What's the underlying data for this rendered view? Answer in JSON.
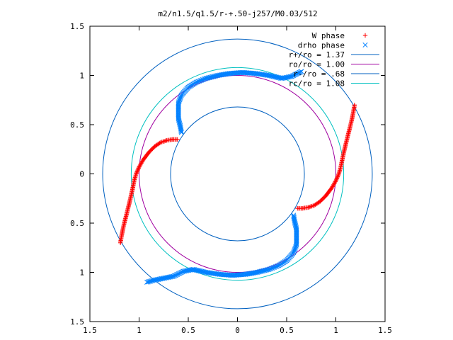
{
  "chart_data": {
    "type": "scatter",
    "title": "m2/n1.5/q1.5/r-+.50-j257/M0.03/512",
    "xlabel": "",
    "ylabel": "",
    "xlim": [
      -1.5,
      1.5
    ],
    "ylim": [
      -1.5,
      1.5
    ],
    "x_ticks": [
      -1.5,
      -1,
      -0.5,
      0,
      0.5,
      1,
      1.5
    ],
    "y_ticks": [
      -1.5,
      -1,
      -0.5,
      0,
      0.5,
      1,
      1.5
    ],
    "x_tick_labels": [
      "1.5",
      "1",
      "0.5",
      "0",
      "0.5",
      "1",
      "1.5"
    ],
    "y_tick_labels": [
      "1.5",
      "1",
      "0.5",
      "0",
      "0.5",
      "1",
      "1.5"
    ],
    "grid": false,
    "legend_position": "top-right",
    "legend": [
      {
        "label": "W phase",
        "marker": "plus",
        "color": "#ff0000"
      },
      {
        "label": "drho phase",
        "marker": "cross",
        "color": "#0080ff"
      },
      {
        "label": "r+/ro = 1.37",
        "line": true,
        "color": "#0060c0"
      },
      {
        "label": "ro/ro = 1.00",
        "line": true,
        "color": "#a000a0"
      },
      {
        "label": "r-/ro = .68",
        "line": true,
        "color": "#0060c0"
      },
      {
        "label": "rc/ro = 1.08",
        "line": true,
        "color": "#00c0c0"
      }
    ],
    "circles": [
      {
        "name": "r+/ro",
        "r": 1.37,
        "color": "#0060c0"
      },
      {
        "name": "ro/ro",
        "r": 1.0,
        "color": "#a000a0"
      },
      {
        "name": "r-/ro",
        "r": 0.68,
        "color": "#0060c0"
      },
      {
        "name": "rc/ro",
        "r": 1.08,
        "color": "#00c0c0"
      }
    ],
    "series": [
      {
        "name": "W phase",
        "marker": "plus",
        "color": "#ff0000",
        "arms": [
          [
            [
              -0.61,
              0.35
            ],
            [
              -0.66,
              0.35
            ],
            [
              -0.72,
              0.34
            ],
            [
              -0.78,
              0.32
            ],
            [
              -0.84,
              0.28
            ],
            [
              -0.9,
              0.22
            ],
            [
              -0.96,
              0.14
            ],
            [
              -1.0,
              0.07
            ],
            [
              -1.03,
              0.0
            ],
            [
              -1.05,
              -0.07
            ],
            [
              -1.07,
              -0.17
            ],
            [
              -1.1,
              -0.3
            ],
            [
              -1.13,
              -0.42
            ],
            [
              -1.16,
              -0.54
            ],
            [
              -1.18,
              -0.64
            ],
            [
              -1.19,
              -0.7
            ]
          ],
          [
            [
              0.61,
              -0.35
            ],
            [
              0.66,
              -0.35
            ],
            [
              0.72,
              -0.34
            ],
            [
              0.78,
              -0.32
            ],
            [
              0.84,
              -0.28
            ],
            [
              0.9,
              -0.22
            ],
            [
              0.96,
              -0.14
            ],
            [
              1.0,
              -0.07
            ],
            [
              1.03,
              0.0
            ],
            [
              1.05,
              0.07
            ],
            [
              1.07,
              0.17
            ],
            [
              1.1,
              0.3
            ],
            [
              1.13,
              0.42
            ],
            [
              1.16,
              0.54
            ],
            [
              1.18,
              0.64
            ],
            [
              1.19,
              0.7
            ]
          ]
        ]
      },
      {
        "name": "drho phase",
        "marker": "cross",
        "color": "#0080ff",
        "arms": [
          [
            [
              -0.57,
              0.42
            ],
            [
              -0.58,
              0.48
            ],
            [
              -0.6,
              0.56
            ],
            [
              -0.6,
              0.64
            ],
            [
              -0.6,
              0.72
            ],
            [
              -0.57,
              0.8
            ],
            [
              -0.5,
              0.88
            ],
            [
              -0.42,
              0.93
            ],
            [
              -0.32,
              0.97
            ],
            [
              -0.2,
              1.0
            ],
            [
              -0.08,
              1.02
            ],
            [
              0.05,
              1.03
            ],
            [
              0.18,
              1.02
            ],
            [
              0.32,
              1.0
            ],
            [
              0.45,
              0.97
            ],
            [
              0.55,
              0.99
            ],
            [
              0.65,
              1.04
            ]
          ],
          [
            [
              0.57,
              -0.42
            ],
            [
              0.58,
              -0.48
            ],
            [
              0.6,
              -0.56
            ],
            [
              0.6,
              -0.64
            ],
            [
              0.6,
              -0.72
            ],
            [
              0.57,
              -0.8
            ],
            [
              0.5,
              -0.88
            ],
            [
              0.42,
              -0.93
            ],
            [
              0.32,
              -0.97
            ],
            [
              0.2,
              -1.0
            ],
            [
              0.08,
              -1.02
            ],
            [
              -0.05,
              -1.03
            ],
            [
              -0.18,
              -1.02
            ],
            [
              -0.32,
              -1.0
            ],
            [
              -0.45,
              -0.97
            ],
            [
              -0.55,
              -0.99
            ],
            [
              -0.65,
              -1.04
            ],
            [
              -0.75,
              -1.06
            ],
            [
              -0.85,
              -1.08
            ],
            [
              -0.92,
              -1.1
            ]
          ]
        ]
      }
    ]
  }
}
